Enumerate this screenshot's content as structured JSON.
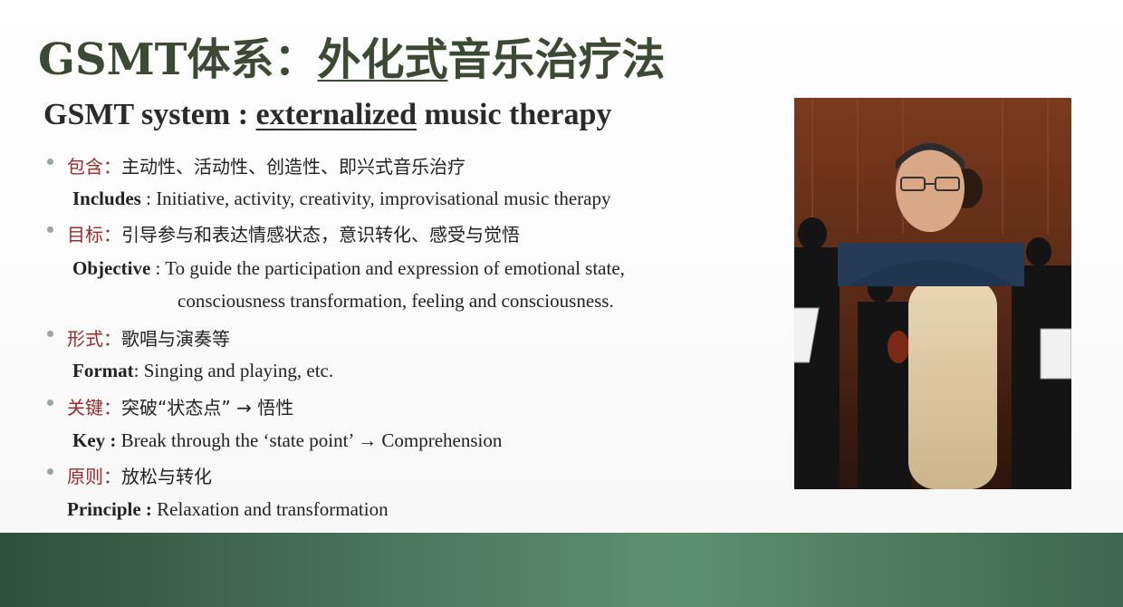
{
  "slide": {
    "title_prefix": "GSMT体系：",
    "title_underlined": "外化式",
    "title_suffix": "音乐治疗法",
    "subtitle_prefix": "GSMT system : ",
    "subtitle_underlined": "externalized",
    "subtitle_suffix": " music therapy"
  },
  "items": [
    {
      "zh_label": "包含：",
      "zh_text": "主动性、活动性、创造性、即兴式音乐治疗",
      "en_label": "Includes",
      "en_text": " : Initiative, activity, creativity, improvisational music therapy"
    },
    {
      "zh_label": "目标：",
      "zh_text": "引导参与和表达情感状态，意识转化、感受与觉悟",
      "en_label": "Objective",
      "en_text": " : To guide the participation and expression of emotional state,",
      "en_text2": "consciousness transformation, feeling and consciousness."
    },
    {
      "zh_label": "形式：",
      "zh_text": "歌唱与演奏等",
      "en_label": "Format",
      "en_text": ": Singing and playing, etc."
    },
    {
      "zh_label": "关键：",
      "zh_text": "突破“状态点”  →  悟性",
      "en_label": "Key :",
      "en_text": " Break through the ‘state point’ → Comprehension"
    },
    {
      "zh_label": "原则：",
      "zh_text": "放松与转化",
      "en_label": "Principle :",
      "en_text": " Relaxation and transformation"
    }
  ],
  "colors": {
    "title": "#3d4a33",
    "label": "#9c2a2a",
    "bottom_bar": "#4f7a63"
  }
}
